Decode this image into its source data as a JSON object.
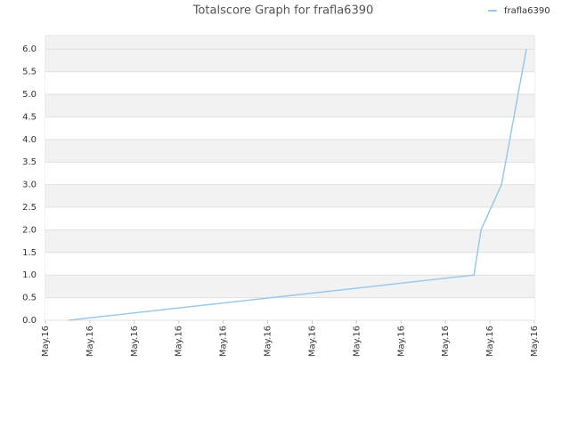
{
  "chart_data": {
    "type": "line",
    "title": "Totalscore Graph for frafla6390",
    "x": [
      0.52,
      9.64,
      9.8,
      10.26,
      10.82
    ],
    "series": [
      {
        "name": "frafla6390",
        "color": "#99c9ee",
        "values": [
          0,
          1.0,
          2.0,
          3.0,
          6.0
        ]
      }
    ],
    "xlim": [
      0,
      11
    ],
    "xticks": [
      {
        "value": 0,
        "label": "May.16"
      },
      {
        "value": 1,
        "label": "May.16"
      },
      {
        "value": 2,
        "label": "May.16"
      },
      {
        "value": 3,
        "label": "May.16"
      },
      {
        "value": 4,
        "label": "May.16"
      },
      {
        "value": 5,
        "label": "May.16"
      },
      {
        "value": 6,
        "label": "May.16"
      },
      {
        "value": 7,
        "label": "May.16"
      },
      {
        "value": 8,
        "label": "May.16"
      },
      {
        "value": 9,
        "label": "May.16"
      },
      {
        "value": 10,
        "label": "May.16"
      },
      {
        "value": 11,
        "label": "May.16"
      }
    ],
    "ylim": [
      0,
      6.3
    ],
    "yticks": [
      {
        "value": 0,
        "label": "0.0"
      },
      {
        "value": 0.5,
        "label": "0.5"
      },
      {
        "value": 1,
        "label": "1.0"
      },
      {
        "value": 1.5,
        "label": "1.5"
      },
      {
        "value": 2,
        "label": "2.0"
      },
      {
        "value": 2.5,
        "label": "2.5"
      },
      {
        "value": 3,
        "label": "3.0"
      },
      {
        "value": 3.5,
        "label": "3.5"
      },
      {
        "value": 4,
        "label": "4.0"
      },
      {
        "value": 4.5,
        "label": "4.5"
      },
      {
        "value": 5,
        "label": "5.0"
      },
      {
        "value": 5.5,
        "label": "5.5"
      },
      {
        "value": 6,
        "label": "6.0"
      }
    ],
    "grid": true,
    "legend": "top-right"
  }
}
